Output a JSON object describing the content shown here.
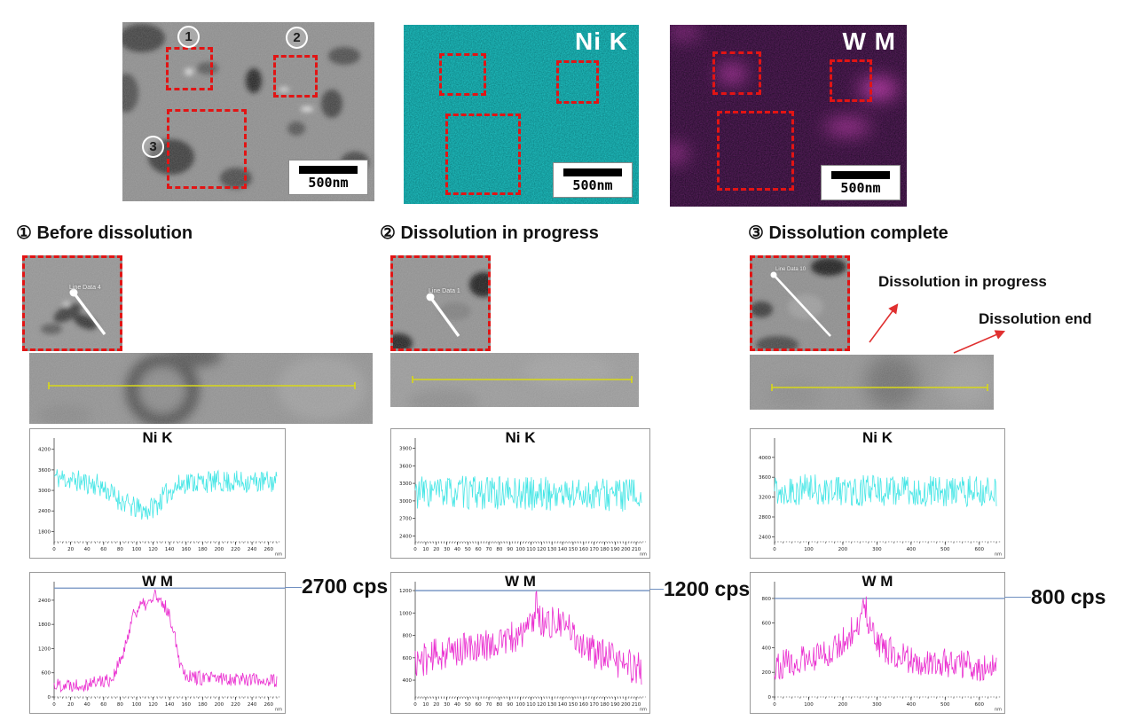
{
  "figure": {
    "top_row": {
      "sem": {
        "markers": [
          "1",
          "2",
          "3"
        ],
        "scale_label": "500nm"
      },
      "ni_map": {
        "label": "Ni K",
        "scale_label": "500nm"
      },
      "w_map": {
        "label": "W M",
        "scale_label": "500nm"
      }
    },
    "sections": [
      {
        "title": "① Before dissolution",
        "inset_label": "Line Data 4",
        "callout": "2700 cps"
      },
      {
        "title": "② Dissolution in progress",
        "inset_label": "Line Data 1",
        "callout": "1200 cps"
      },
      {
        "title": "③ Dissolution complete",
        "inset_label": "Line Data 10",
        "callout": "800 cps",
        "annotations": {
          "in_progress": "Dissolution in progress",
          "end": "Dissolution end"
        }
      }
    ]
  },
  "colors": {
    "roi_red": "#e21414",
    "ni_cyan": "#45e6e6",
    "w_magenta": "#ea2fd0",
    "callout_line_blue": "#6f8fc0",
    "arrow_red": "#e03030",
    "scan_yellow": "#d8d818",
    "map_teal": "#0a9e9e",
    "map_purple": "#1c0526"
  },
  "chart_data": [
    {
      "type": "line",
      "title": "Ni K",
      "series": "Ni K line scan (before dissolution)",
      "color": "#45e6e6",
      "x_unit": "nm",
      "x_max": 270,
      "x_label_step": 20,
      "ylim": [
        1500,
        4400
      ],
      "yticks": [
        1800,
        2400,
        3000,
        3600,
        4200
      ],
      "trend": [
        [
          0,
          3400
        ],
        [
          55,
          3150
        ],
        [
          75,
          2800
        ],
        [
          95,
          2500
        ],
        [
          112,
          2400
        ],
        [
          125,
          2600
        ],
        [
          140,
          3000
        ],
        [
          160,
          3250
        ],
        [
          270,
          3250
        ]
      ],
      "noise": 330,
      "seed": 11
    },
    {
      "type": "line",
      "title": "W M",
      "series": "W M line scan (before dissolution)",
      "color": "#ea2fd0",
      "x_unit": "nm",
      "x_max": 270,
      "x_label_step": 20,
      "ylim": [
        0,
        2750
      ],
      "yticks": [
        0,
        600,
        1200,
        1800,
        2400
      ],
      "trend": [
        [
          0,
          300
        ],
        [
          40,
          330
        ],
        [
          70,
          450
        ],
        [
          85,
          1100
        ],
        [
          95,
          2050
        ],
        [
          105,
          2250
        ],
        [
          118,
          2350
        ],
        [
          122,
          2600
        ],
        [
          126,
          2350
        ],
        [
          135,
          2250
        ],
        [
          145,
          1700
        ],
        [
          152,
          900
        ],
        [
          160,
          550
        ],
        [
          180,
          450
        ],
        [
          230,
          460
        ],
        [
          270,
          380
        ]
      ],
      "noise": 180,
      "marker_value": 2700,
      "seed": 22
    },
    {
      "type": "line",
      "title": "Ni K",
      "series": "Ni K line scan (dissolution in progress)",
      "color": "#45e6e6",
      "x_unit": "nm",
      "x_max": 215,
      "x_label_step": 10,
      "ylim": [
        2300,
        4000
      ],
      "yticks": [
        2400,
        2700,
        3000,
        3300,
        3600,
        3900
      ],
      "trend": [
        [
          0,
          3150
        ],
        [
          215,
          3100
        ]
      ],
      "noise": 290,
      "seed": 33
    },
    {
      "type": "line",
      "title": "W M",
      "series": "W M line scan (dissolution in progress)",
      "color": "#ea2fd0",
      "x_unit": "nm",
      "x_max": 215,
      "x_label_step": 10,
      "ylim": [
        250,
        1240
      ],
      "yticks": [
        400,
        600,
        800,
        1000,
        1200
      ],
      "trend": [
        [
          0,
          560
        ],
        [
          25,
          640
        ],
        [
          55,
          690
        ],
        [
          75,
          730
        ],
        [
          95,
          780
        ],
        [
          108,
          870
        ],
        [
          112,
          930
        ],
        [
          115,
          1130
        ],
        [
          118,
          930
        ],
        [
          125,
          920
        ],
        [
          135,
          900
        ],
        [
          145,
          870
        ],
        [
          155,
          760
        ],
        [
          170,
          650
        ],
        [
          185,
          590
        ],
        [
          200,
          540
        ],
        [
          215,
          500
        ]
      ],
      "noise": 150,
      "marker_value": 1200,
      "seed": 44
    },
    {
      "type": "line",
      "title": "Ni K",
      "series": "Ni K line scan (dissolution complete)",
      "color": "#45e6e6",
      "x_unit": "nm",
      "x_max": 650,
      "x_label_step": 100,
      "ylim": [
        2300,
        4300
      ],
      "yticks": [
        2400,
        2800,
        3200,
        3600,
        4000
      ],
      "trend": [
        [
          0,
          3350
        ],
        [
          650,
          3300
        ]
      ],
      "noise": 320,
      "seed": 55
    },
    {
      "type": "line",
      "title": "W M",
      "series": "W M line scan (dissolution complete)",
      "color": "#ea2fd0",
      "x_unit": "nm",
      "x_max": 650,
      "x_label_step": 100,
      "ylim": [
        0,
        900
      ],
      "yticks": [
        0,
        200,
        400,
        600,
        800
      ],
      "trend": [
        [
          0,
          260
        ],
        [
          100,
          300
        ],
        [
          170,
          380
        ],
        [
          220,
          520
        ],
        [
          250,
          590
        ],
        [
          262,
          840
        ],
        [
          275,
          560
        ],
        [
          310,
          420
        ],
        [
          360,
          330
        ],
        [
          420,
          290
        ],
        [
          520,
          270
        ],
        [
          650,
          230
        ]
      ],
      "noise": 120,
      "marker_value": 800,
      "seed": 66
    }
  ]
}
